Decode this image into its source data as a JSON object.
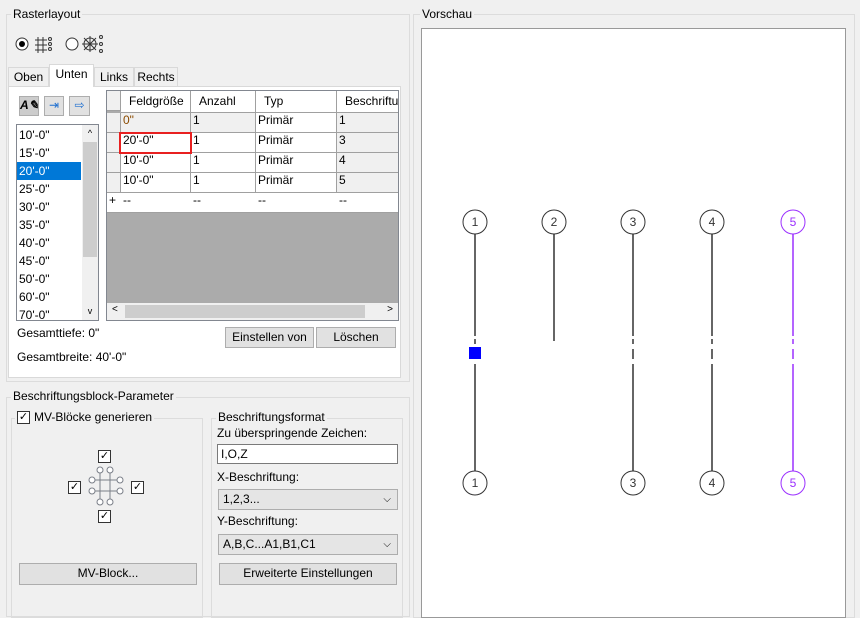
{
  "raster": {
    "title": "Rasterlayout",
    "layout_options": [
      {
        "icon": "rect-grid-icon",
        "selected": true
      },
      {
        "icon": "radial-grid-icon",
        "selected": false
      }
    ],
    "tabs": [
      "Oben",
      "Unten",
      "Links",
      "Rechts"
    ],
    "active_tab": "Unten",
    "toolbar_icons": [
      "edit-label-icon",
      "insert-row-icon",
      "append-row-icon"
    ],
    "sizes": [
      "10'-0\"",
      "15'-0\"",
      "20'-0\"",
      "25'-0\"",
      "30'-0\"",
      "35'-0\"",
      "40'-0\"",
      "45'-0\"",
      "50'-0\"",
      "60'-0\"",
      "70'-0\""
    ],
    "selected_size": "20'-0\"",
    "columns": [
      "Feldgröße",
      "Anzahl",
      "Typ",
      "Beschriftun"
    ],
    "rows": [
      [
        "0\"",
        "1",
        "Primär",
        "1"
      ],
      [
        "20'-0\"",
        "1",
        "Primär",
        "3"
      ],
      [
        "10'-0\"",
        "1",
        "Primär",
        "4"
      ],
      [
        "10'-0\"",
        "1",
        "Primär",
        "5"
      ]
    ],
    "new_row": [
      "+",
      "--",
      "--",
      "--",
      "--"
    ],
    "total_depth": "Gesamttiefe: 0\"",
    "total_width": "Gesamtbreite: 40'-0\"",
    "set_from": "Einstellen von",
    "delete": "Löschen"
  },
  "label_block": {
    "title": "Beschriftungsblock-Parameter",
    "generate": "MV-Blöcke generieren",
    "generate_checked": true,
    "mv_block": "MV-Block...",
    "format_title": "Beschriftungsformat",
    "skip_label": "Zu überspringende Zeichen:",
    "skip_value": "I,O,Z",
    "x_label": "X-Beschriftung:",
    "x_value": "1,2,3...",
    "y_label": "Y-Beschriftung:",
    "y_value": "A,B,C...A1,B1,C1",
    "advanced": "Erweiterte Einstellungen"
  },
  "preview": {
    "title": "Vorschau",
    "top_labels": [
      "1",
      "2",
      "3",
      "4",
      "5"
    ],
    "bottom_labels": [
      "1",
      "3",
      "4",
      "5"
    ],
    "highlight_color": "#9b30ff",
    "selection_color": "#0000ff"
  }
}
